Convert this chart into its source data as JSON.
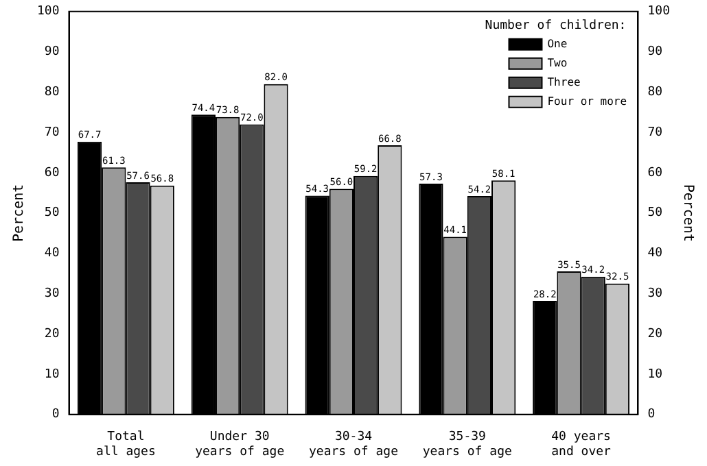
{
  "chart_data": {
    "type": "bar",
    "ylabel": "Percent",
    "y2label": "Percent",
    "legend_title": "Number of children:",
    "categories": [
      "Total\nall ages",
      "Under 30\nyears of age",
      "30-34\nyears of age",
      "35-39\nyears of age",
      "40 years\nand over"
    ],
    "series": [
      {
        "name": "One",
        "color": "#000000",
        "values": [
          67.7,
          74.4,
          54.3,
          57.3,
          28.2
        ],
        "value_labels": [
          "67.7",
          "74.4",
          "54.3",
          "57.3",
          "28.2"
        ]
      },
      {
        "name": "Two",
        "color": "#9a9a9a",
        "values": [
          61.3,
          73.8,
          56.0,
          44.1,
          35.5
        ],
        "value_labels": [
          "61.3",
          "73.8",
          "56.0",
          "44.1",
          "35.5"
        ]
      },
      {
        "name": "Three",
        "color": "#4a4a4a",
        "values": [
          57.6,
          72.0,
          59.2,
          54.2,
          34.2
        ],
        "value_labels": [
          "57.6",
          "72.0",
          "59.2",
          "54.2",
          "34.2"
        ]
      },
      {
        "name": "Four or more",
        "color": "#c4c4c4",
        "values": [
          56.8,
          82.0,
          66.8,
          58.1,
          32.5
        ],
        "value_labels": [
          "56.8",
          "82.0",
          "66.8",
          "58.1",
          "32.5"
        ]
      }
    ],
    "ylim": [
      0,
      100
    ],
    "yticks": [
      0,
      10,
      20,
      30,
      40,
      50,
      60,
      70,
      80,
      90,
      100
    ],
    "y2lim": [
      0,
      100
    ],
    "y2ticks": [
      0,
      10,
      20,
      30,
      40,
      50,
      60,
      70,
      80,
      90,
      100
    ],
    "grid": false,
    "legend": "top right"
  }
}
